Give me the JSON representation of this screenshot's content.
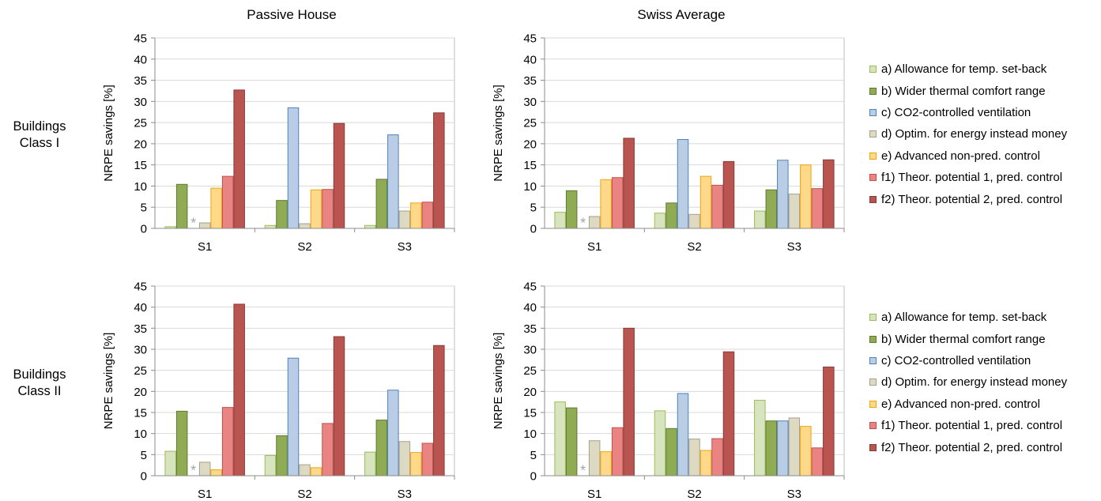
{
  "columns": [
    "Passive House",
    "Swiss Average"
  ],
  "rows": [
    {
      "label_line1": "Buildings",
      "label_line2": "Class I"
    },
    {
      "label_line1": "Buildings",
      "label_line2": "Class II"
    }
  ],
  "legend": [
    {
      "label": "a) Allowance for temp. set-back",
      "fill": "#d7e4bd",
      "stroke": "#9bbb59"
    },
    {
      "label": "b) Wider thermal comfort range",
      "fill": "#8fac55",
      "stroke": "#5f7a2d"
    },
    {
      "label": "c) CO2-controlled ventilation",
      "fill": "#b9cde5",
      "stroke": "#4f81bd"
    },
    {
      "label": "d) Optim. for energy instead money",
      "fill": "#ddd9c3",
      "stroke": "#a6a08a"
    },
    {
      "label": "e) Advanced non-pred. control",
      "fill": "#ffd98a",
      "stroke": "#f0a30a"
    },
    {
      "label": "f1) Theor. potential 1, pred. control",
      "fill": "#e98483",
      "stroke": "#c0504d"
    },
    {
      "label": "f2) Theor. potential 2, pred. control",
      "fill": "#b95450",
      "stroke": "#843c39"
    }
  ],
  "chart_data": [
    {
      "type": "bar",
      "title": "Passive House",
      "row": "Buildings Class I",
      "ylabel": "NRPE savings  [%]",
      "ylim": [
        0,
        45
      ],
      "yticks": [
        0,
        5,
        10,
        15,
        20,
        25,
        30,
        35,
        40,
        45
      ],
      "categories": [
        "S1",
        "S2",
        "S3"
      ],
      "grid": true,
      "annotation": {
        "text": "*",
        "category": "S1",
        "series_index": 2
      },
      "series": [
        {
          "name": "a) Allowance for temp. set-back",
          "values": [
            0.4,
            0.7,
            0.7
          ]
        },
        {
          "name": "b) Wider thermal comfort range",
          "values": [
            10.4,
            6.6,
            11.6
          ]
        },
        {
          "name": "c) CO2-controlled ventilation",
          "values": [
            null,
            28.5,
            22.1
          ]
        },
        {
          "name": "d) Optim. for energy instead money",
          "values": [
            1.3,
            1.1,
            4.1
          ]
        },
        {
          "name": "e) Advanced non-pred. control",
          "values": [
            9.5,
            9.1,
            6.0
          ]
        },
        {
          "name": "f1) Theor. potential 1, pred. control",
          "values": [
            12.3,
            9.2,
            6.2
          ]
        },
        {
          "name": "f2) Theor. potential 2, pred. control",
          "values": [
            32.7,
            24.8,
            27.3
          ]
        }
      ]
    },
    {
      "type": "bar",
      "title": "Swiss Average",
      "row": "Buildings Class I",
      "ylabel": "NRPE savings  [%]",
      "ylim": [
        0,
        45
      ],
      "yticks": [
        0,
        5,
        10,
        15,
        20,
        25,
        30,
        35,
        40,
        45
      ],
      "categories": [
        "S1",
        "S2",
        "S3"
      ],
      "grid": true,
      "legend_position": "right",
      "annotation": {
        "text": "*",
        "category": "S1",
        "series_index": 2
      },
      "series": [
        {
          "name": "a) Allowance for temp. set-back",
          "values": [
            3.8,
            3.6,
            4.1
          ]
        },
        {
          "name": "b) Wider thermal comfort range",
          "values": [
            8.9,
            6.0,
            9.1
          ]
        },
        {
          "name": "c) CO2-controlled ventilation",
          "values": [
            null,
            21.0,
            16.1
          ]
        },
        {
          "name": "d) Optim. for energy instead money",
          "values": [
            2.8,
            3.3,
            8.1
          ]
        },
        {
          "name": "e) Advanced non-pred. control",
          "values": [
            11.5,
            12.3,
            15.0
          ]
        },
        {
          "name": "f1) Theor. potential 1, pred. control",
          "values": [
            12.0,
            10.2,
            9.4
          ]
        },
        {
          "name": "f2) Theor. potential 2, pred. control",
          "values": [
            21.3,
            15.8,
            16.2
          ]
        }
      ]
    },
    {
      "type": "bar",
      "title": "Passive House",
      "row": "Buildings Class II",
      "ylabel": "NRPE savings  [%]",
      "ylim": [
        0,
        45
      ],
      "yticks": [
        0,
        5,
        10,
        15,
        20,
        25,
        30,
        35,
        40,
        45
      ],
      "categories": [
        "S1",
        "S2",
        "S3"
      ],
      "grid": true,
      "annotation": {
        "text": "*",
        "category": "S1",
        "series_index": 2
      },
      "series": [
        {
          "name": "a) Allowance for temp. set-back",
          "values": [
            5.8,
            4.8,
            5.6
          ]
        },
        {
          "name": "b) Wider thermal comfort range",
          "values": [
            15.3,
            9.5,
            13.2
          ]
        },
        {
          "name": "c) CO2-controlled ventilation",
          "values": [
            null,
            27.9,
            20.3
          ]
        },
        {
          "name": "d) Optim. for energy instead money",
          "values": [
            3.2,
            2.6,
            8.1
          ]
        },
        {
          "name": "e) Advanced non-pred. control",
          "values": [
            1.4,
            1.9,
            5.5
          ]
        },
        {
          "name": "f1) Theor. potential 1, pred. control",
          "values": [
            16.2,
            12.4,
            7.7
          ]
        },
        {
          "name": "f2) Theor. potential 2, pred. control",
          "values": [
            40.7,
            33.0,
            30.9
          ]
        }
      ]
    },
    {
      "type": "bar",
      "title": "Swiss Average",
      "row": "Buildings Class II",
      "ylabel": "NRPE savings  [%]",
      "ylim": [
        0,
        45
      ],
      "yticks": [
        0,
        5,
        10,
        15,
        20,
        25,
        30,
        35,
        40,
        45
      ],
      "categories": [
        "S1",
        "S2",
        "S3"
      ],
      "grid": true,
      "legend_position": "right",
      "annotation": {
        "text": "*",
        "category": "S1",
        "series_index": 2
      },
      "series": [
        {
          "name": "a) Allowance for temp. set-back",
          "values": [
            17.5,
            15.4,
            17.9
          ]
        },
        {
          "name": "b) Wider thermal comfort range",
          "values": [
            16.1,
            11.2,
            13.0
          ]
        },
        {
          "name": "c) CO2-controlled ventilation",
          "values": [
            null,
            19.5,
            13.0
          ]
        },
        {
          "name": "d) Optim. for energy instead money",
          "values": [
            8.3,
            8.7,
            13.7
          ]
        },
        {
          "name": "e) Advanced non-pred. control",
          "values": [
            5.7,
            6.0,
            11.7
          ]
        },
        {
          "name": "f1) Theor. potential 1, pred. control",
          "values": [
            11.4,
            8.8,
            6.6
          ]
        },
        {
          "name": "f2) Theor. potential 2, pred. control",
          "values": [
            35.0,
            29.4,
            25.8
          ]
        }
      ]
    }
  ]
}
